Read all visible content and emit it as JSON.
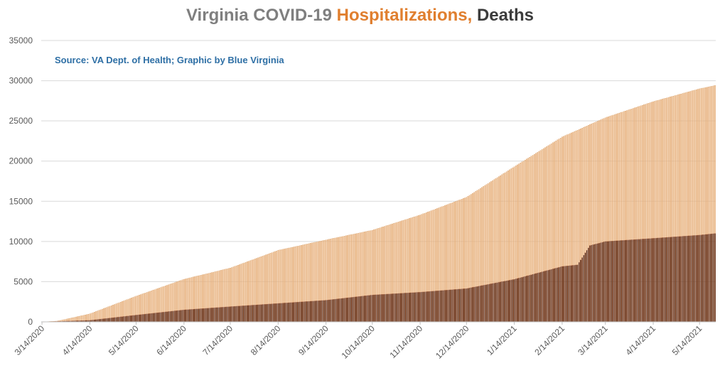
{
  "chart_data": {
    "type": "bar",
    "title_parts": [
      {
        "text": "Virginia COVID-19 ",
        "color": "#7f7f7f"
      },
      {
        "text": "Hospitalizations, ",
        "color": "#e07f2f"
      },
      {
        "text": "Deaths",
        "color": "#3c3c3c"
      }
    ],
    "source_note": "Source: VA Dept. of Health; Graphic by Blue Virginia",
    "ylim": [
      0,
      35000
    ],
    "yticks": [
      "0",
      "5000",
      "10000",
      "15000",
      "20000",
      "25000",
      "30000",
      "35000"
    ],
    "ytick_values": [
      0,
      5000,
      10000,
      15000,
      20000,
      25000,
      30000,
      35000
    ],
    "grid": true,
    "legend": "none",
    "x_start": "3/14/2020",
    "x_end": "5/24/2021",
    "xticks": [
      "3/14/2020",
      "4/14/2020",
      "5/14/2020",
      "6/14/2020",
      "7/14/2020",
      "8/14/2020",
      "9/14/2020",
      "10/14/2020",
      "11/14/2020",
      "12/14/2020",
      "1/14/2021",
      "2/14/2021",
      "3/14/2021",
      "4/14/2021",
      "5/14/2021"
    ],
    "series": [
      {
        "color": "#f5c598",
        "edge_color": "#c9833f",
        "role": "back",
        "anchors": [
          [
            "3/14/2020",
            0
          ],
          [
            "3/24/2020",
            100
          ],
          [
            "4/14/2020",
            1000
          ],
          [
            "5/14/2020",
            3200
          ],
          [
            "6/14/2020",
            5300
          ],
          [
            "7/14/2020",
            6700
          ],
          [
            "8/14/2020",
            8900
          ],
          [
            "9/14/2020",
            10200
          ],
          [
            "10/14/2020",
            11400
          ],
          [
            "11/14/2020",
            13300
          ],
          [
            "12/14/2020",
            15500
          ],
          [
            "1/14/2021",
            19300
          ],
          [
            "2/14/2021",
            23000
          ],
          [
            "3/14/2021",
            25400
          ],
          [
            "4/14/2021",
            27400
          ],
          [
            "5/14/2021",
            29000
          ],
          [
            "5/24/2021",
            29400
          ]
        ]
      },
      {
        "color": "#3d1a0c",
        "edge_color": "#c76b42",
        "role": "front",
        "anchors": [
          [
            "3/14/2020",
            0
          ],
          [
            "4/14/2020",
            200
          ],
          [
            "5/14/2020",
            850
          ],
          [
            "6/14/2020",
            1500
          ],
          [
            "7/14/2020",
            1900
          ],
          [
            "8/14/2020",
            2300
          ],
          [
            "9/14/2020",
            2700
          ],
          [
            "10/14/2020",
            3350
          ],
          [
            "11/14/2020",
            3700
          ],
          [
            "12/14/2020",
            4150
          ],
          [
            "1/14/2021",
            5300
          ],
          [
            "2/14/2021",
            6900
          ],
          [
            "2/24/2021",
            7100
          ],
          [
            "3/4/2021",
            9500
          ],
          [
            "3/14/2021",
            10000
          ],
          [
            "4/14/2021",
            10400
          ],
          [
            "5/14/2021",
            10800
          ],
          [
            "5/24/2021",
            11000
          ]
        ]
      }
    ]
  }
}
